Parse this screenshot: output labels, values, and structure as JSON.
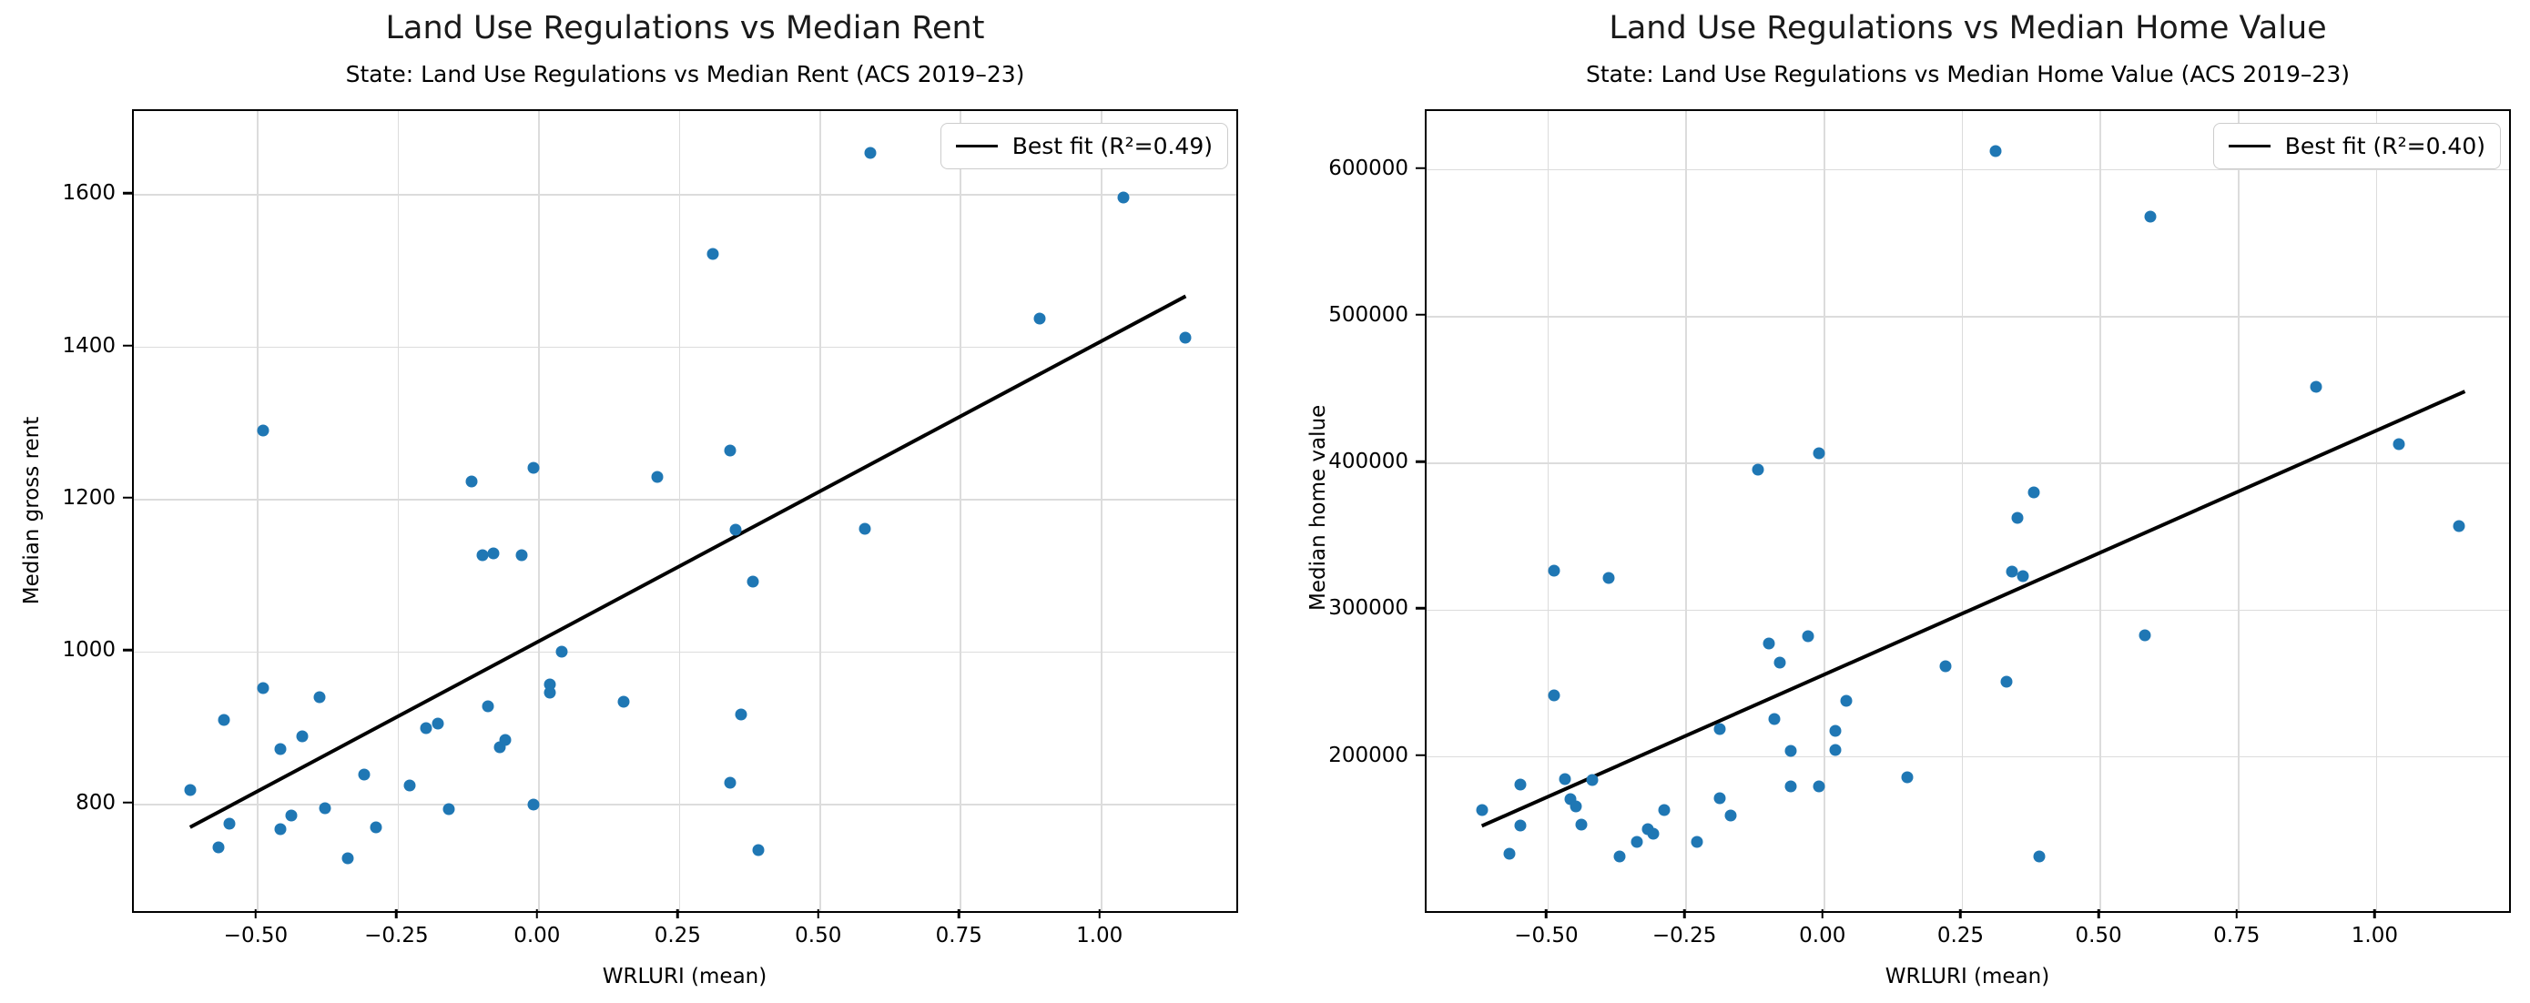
{
  "chart_data": [
    {
      "type": "scatter",
      "title": "Land Use Regulations vs Median Rent",
      "subtitle": "State: Land Use Regulations vs Median Rent (ACS 2019–23)",
      "xlabel": "WRLURI (mean)",
      "ylabel": "Median gross rent",
      "legend_label": "Best fit (R²=0.49)",
      "legend_position": "upper right",
      "grid": true,
      "marker_color": "#1f77b4",
      "fit_line_color": "#000000",
      "xlim": [
        -0.72,
        1.24
      ],
      "ylim": [
        660,
        1710
      ],
      "xticks": [
        {
          "value": -0.5,
          "label": "−0.50"
        },
        {
          "value": -0.25,
          "label": "−0.25"
        },
        {
          "value": 0.0,
          "label": "0.00"
        },
        {
          "value": 0.25,
          "label": "0.25"
        },
        {
          "value": 0.5,
          "label": "0.50"
        },
        {
          "value": 0.75,
          "label": "0.75"
        },
        {
          "value": 1.0,
          "label": "1.00"
        }
      ],
      "yticks": [
        {
          "value": 800,
          "label": "800"
        },
        {
          "value": 1000,
          "label": "1000"
        },
        {
          "value": 1200,
          "label": "1200"
        },
        {
          "value": 1400,
          "label": "1400"
        },
        {
          "value": 1600,
          "label": "1600"
        }
      ],
      "points": [
        [
          -0.62,
          819
        ],
        [
          -0.57,
          744
        ],
        [
          -0.56,
          911
        ],
        [
          -0.55,
          775
        ],
        [
          -0.49,
          1291
        ],
        [
          -0.49,
          953
        ],
        [
          -0.46,
          873
        ],
        [
          -0.46,
          767
        ],
        [
          -0.44,
          786
        ],
        [
          -0.42,
          889
        ],
        [
          -0.39,
          941
        ],
        [
          -0.38,
          795
        ],
        [
          -0.34,
          729
        ],
        [
          -0.31,
          839
        ],
        [
          -0.29,
          770
        ],
        [
          -0.23,
          825
        ],
        [
          -0.2,
          900
        ],
        [
          -0.18,
          906
        ],
        [
          -0.16,
          794
        ],
        [
          -0.12,
          1224
        ],
        [
          -0.1,
          1127
        ],
        [
          -0.09,
          929
        ],
        [
          -0.08,
          1129
        ],
        [
          -0.07,
          875
        ],
        [
          -0.06,
          884
        ],
        [
          -0.03,
          1127
        ],
        [
          -0.01,
          1242
        ],
        [
          -0.01,
          800
        ],
        [
          0.02,
          958
        ],
        [
          0.02,
          947
        ],
        [
          0.04,
          1001
        ],
        [
          0.15,
          935
        ],
        [
          0.21,
          1230
        ],
        [
          0.31,
          1523
        ],
        [
          0.34,
          1265
        ],
        [
          0.34,
          828
        ],
        [
          0.35,
          1161
        ],
        [
          0.36,
          918
        ],
        [
          0.38,
          1093
        ],
        [
          0.39,
          740
        ],
        [
          0.58,
          1162
        ],
        [
          0.59,
          1655
        ],
        [
          0.89,
          1438
        ],
        [
          1.04,
          1597
        ],
        [
          1.15,
          1412
        ]
      ],
      "fit_line": {
        "x": [
          -0.62,
          1.15
        ],
        "y": [
          770,
          1467
        ]
      }
    },
    {
      "type": "scatter",
      "title": "Land Use Regulations vs Median Home Value",
      "subtitle": "State: Land Use Regulations vs Median Home Value (ACS 2019–23)",
      "xlabel": "WRLURI (mean)",
      "ylabel": "Median home value",
      "legend_label": "Best fit (R²=0.40)",
      "legend_position": "upper right",
      "grid": true,
      "marker_color": "#1f77b4",
      "fit_line_color": "#000000",
      "xlim": [
        -0.72,
        1.24
      ],
      "ylim": [
        95000,
        640000
      ],
      "xticks": [
        {
          "value": -0.5,
          "label": "−0.50"
        },
        {
          "value": -0.25,
          "label": "−0.25"
        },
        {
          "value": 0.0,
          "label": "0.00"
        },
        {
          "value": 0.25,
          "label": "0.25"
        },
        {
          "value": 0.5,
          "label": "0.50"
        },
        {
          "value": 0.75,
          "label": "0.75"
        },
        {
          "value": 1.0,
          "label": "1.00"
        }
      ],
      "yticks": [
        {
          "value": 200000,
          "label": "200000"
        },
        {
          "value": 300000,
          "label": "300000"
        },
        {
          "value": 400000,
          "label": "400000"
        },
        {
          "value": 500000,
          "label": "500000"
        },
        {
          "value": 600000,
          "label": "600000"
        }
      ],
      "points": [
        [
          -0.62,
          164000
        ],
        [
          -0.57,
          134000
        ],
        [
          -0.55,
          181000
        ],
        [
          -0.55,
          153000
        ],
        [
          -0.49,
          327000
        ],
        [
          -0.49,
          242000
        ],
        [
          -0.47,
          185000
        ],
        [
          -0.46,
          171000
        ],
        [
          -0.45,
          166000
        ],
        [
          -0.44,
          154000
        ],
        [
          -0.42,
          184000
        ],
        [
          -0.39,
          322000
        ],
        [
          -0.37,
          132000
        ],
        [
          -0.34,
          142000
        ],
        [
          -0.32,
          151000
        ],
        [
          -0.31,
          148000
        ],
        [
          -0.29,
          164000
        ],
        [
          -0.23,
          142000
        ],
        [
          -0.19,
          219000
        ],
        [
          -0.19,
          172000
        ],
        [
          -0.17,
          160000
        ],
        [
          -0.12,
          396000
        ],
        [
          -0.1,
          277000
        ],
        [
          -0.09,
          226000
        ],
        [
          -0.08,
          264000
        ],
        [
          -0.06,
          204000
        ],
        [
          -0.06,
          180000
        ],
        [
          -0.03,
          282000
        ],
        [
          -0.01,
          407000
        ],
        [
          -0.01,
          180000
        ],
        [
          0.02,
          218000
        ],
        [
          0.02,
          205000
        ],
        [
          0.04,
          238000
        ],
        [
          0.15,
          186000
        ],
        [
          0.22,
          262000
        ],
        [
          0.31,
          613000
        ],
        [
          0.33,
          251000
        ],
        [
          0.34,
          326000
        ],
        [
          0.36,
          323000
        ],
        [
          0.35,
          363000
        ],
        [
          0.38,
          380000
        ],
        [
          0.39,
          132000
        ],
        [
          0.58,
          283000
        ],
        [
          0.59,
          568000
        ],
        [
          0.89,
          452000
        ],
        [
          1.04,
          413000
        ],
        [
          1.15,
          357000
        ]
      ],
      "fit_line": {
        "x": [
          -0.62,
          1.16
        ],
        "y": [
          153000,
          449000
        ]
      }
    }
  ]
}
